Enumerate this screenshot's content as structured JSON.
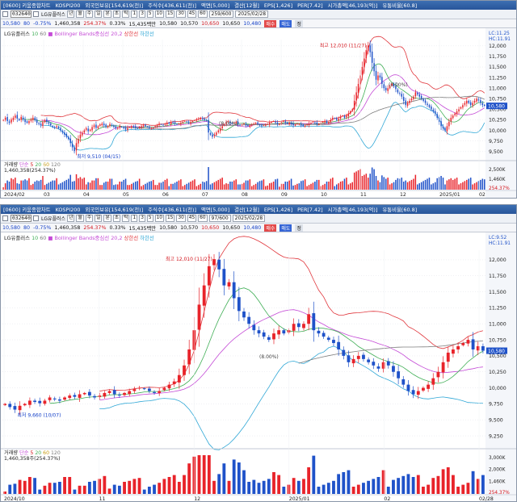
{
  "windows": [
    {
      "id": "top",
      "title_items": [
        "[0600] 키움종합차트",
        "KOSPI200",
        "외국인보유[154,619(천)]",
        "주식수[436,611(천)]",
        "액면[5,000]",
        "결산[12월]",
        "EPS[1,426]",
        "PER[7.42]",
        "시가총액[46,193(억)]",
        "유통비율[60.8]"
      ],
      "code": "032640",
      "period_buttons": [
        "년",
        "월",
        "주",
        "일",
        "분",
        "초",
        "틱",
        "1",
        "3",
        "5",
        "10",
        "15",
        "30",
        "45",
        "60"
      ],
      "counter": "259/600",
      "date": "2025/02/28",
      "stock_name": "LG유플러스",
      "quote": {
        "price": "10,580",
        "change": "80",
        "change_pct": "-0.75%",
        "volume": "1,460,358",
        "vol_ratio": "254.37%",
        "turnover": "0.33%",
        "amount": "15,435백만",
        "open": "10,580",
        "high": "10,570",
        "low": "10,650",
        "close2": "10,650",
        "low2": "10,480"
      },
      "trade_buttons": [
        "매수",
        "매도",
        "정"
      ],
      "legend": {
        "name": "LG유플러스",
        "ma_a": "10",
        "ma_b": "60",
        "bb": "Bollinger Bands중심선 20,2",
        "upper": "상한선",
        "lower": "하한선"
      },
      "hilo": {
        "lc": "LC:11.25",
        "hc": "HC:11.91"
      },
      "vol_legend": {
        "name": "거래량",
        "ma": "단순",
        "p1": "5",
        "p2": "20",
        "p3": "60",
        "p4": "120",
        "value": "1,460,358(254.37%)"
      },
      "annotations": {
        "high": "최고 12,010 (11/27)",
        "low": "최저 9,510 (04/15)",
        "mid": "(8.00%)",
        "mid2": "(0.00%)"
      },
      "last_price_tag": "10,580"
    },
    {
      "id": "bottom",
      "title_items": [
        "[0600] 키움종합차트",
        "KOSPI200",
        "외국인보유[154,619(천)]",
        "주식수[436,611(천)]",
        "액면[5,000]",
        "결산[12월]",
        "EPS[1,426]",
        "PER[7.42]",
        "시가총액[46,193(억)]",
        "유통비율[60.8]"
      ],
      "code": "032640",
      "period_buttons": [
        "년",
        "월",
        "주",
        "일",
        "분",
        "초",
        "틱",
        "1",
        "3",
        "5",
        "10",
        "15",
        "30",
        "45",
        "60"
      ],
      "counter": "97/600",
      "date": "2025/02/28",
      "stock_name": "LG유플러스",
      "quote": {
        "price": "10,580",
        "change": "80",
        "change_pct": "-0.75%",
        "volume": "1,460,358",
        "vol_ratio": "254.37%",
        "turnover": "0.33%",
        "amount": "15,435백만",
        "open": "10,580",
        "high": "10,570",
        "low": "10,650",
        "close2": "10,650",
        "low2": "10,480"
      },
      "trade_buttons": [
        "매수",
        "매도",
        "정"
      ],
      "legend": {
        "name": "LG유플러스",
        "ma_a": "10",
        "ma_b": "60",
        "bb": "Bollinger Bands중심선 20,2",
        "upper": "상한선",
        "lower": "하한선"
      },
      "hilo": {
        "lc": "LC:9.52",
        "hc": "HC:11.91"
      },
      "vol_legend": {
        "name": "거래량",
        "ma": "단순",
        "p1": "5",
        "p2": "20",
        "p3": "60",
        "p4": "120",
        "value": "1,460,358주(254.37%)"
      },
      "annotations": {
        "high": "최고 12,010 (11/27)",
        "low": "최저 9,660 (10/07)",
        "mid": "(8.00%)"
      },
      "last_price_tag": "10,580"
    }
  ],
  "chart_data": [
    {
      "type": "candlestick",
      "window": "top",
      "y_ticks": [
        "12,000",
        "11,750",
        "11,500",
        "11,250",
        "11,000",
        "10,750",
        "10,500",
        "10,250",
        "10,000",
        "9,750",
        "9,500"
      ],
      "ylim": [
        9400,
        12150
      ],
      "x_labels": [
        "2024/02",
        "03",
        "04",
        "05",
        "06",
        "07",
        "08",
        "09",
        "10",
        "11",
        "12",
        "2025/01",
        "02"
      ],
      "vol_ticks": [
        "2,500K",
        "1,460K"
      ],
      "vol_right_label": "254.37%",
      "closes": [
        10250,
        10300,
        10220,
        10180,
        10260,
        10300,
        10350,
        10280,
        10240,
        10320,
        10260,
        10200,
        10180,
        10220,
        10260,
        10300,
        10240,
        10180,
        10150,
        10120,
        10200,
        10240,
        10200,
        10160,
        10120,
        10080,
        10060,
        10100,
        10050,
        10000,
        9950,
        9900,
        9850,
        9800,
        9700,
        9600,
        9510,
        9700,
        9800,
        9900,
        9950,
        10000,
        10050,
        9980,
        10020,
        10080,
        10120,
        10060,
        10100,
        10140,
        10160,
        10120,
        10080,
        10100,
        10150,
        10120,
        10080,
        10050,
        10060,
        10100,
        10080,
        10050,
        10020,
        10060,
        10080,
        10100,
        10080,
        10060,
        10050,
        10080,
        10100,
        10120,
        10100,
        10080,
        10060,
        10050,
        10060,
        10100,
        10120,
        10160,
        10140,
        10120,
        10150,
        10180,
        10160,
        10200,
        10180,
        10160,
        10140,
        10160,
        10180,
        10200,
        10220,
        10200,
        10180,
        10200,
        10220,
        10240,
        10260,
        10280,
        10300,
        10260,
        10250,
        10240,
        9950,
        9900,
        9850,
        9900,
        9950,
        10000,
        10050,
        10100,
        10150,
        10200,
        10220,
        10180,
        10160,
        10180,
        10200,
        10150,
        10120,
        10140,
        10160,
        10120,
        10100,
        10120,
        10140,
        10160,
        10180,
        10150,
        10120,
        10100,
        10120,
        10140,
        10150,
        10180,
        10200,
        10220,
        10180,
        10150,
        10160,
        10200,
        10220,
        10180,
        10160,
        10180,
        10150,
        10120,
        10140,
        10160,
        10150,
        10120,
        10100,
        10120,
        10140,
        10160,
        10180,
        10200,
        10180,
        10150,
        10160,
        10180,
        10200,
        10220,
        10180,
        10200,
        10250,
        10300,
        10280,
        10250,
        10280,
        10320,
        10350,
        10300,
        10350,
        10400,
        10450,
        10500,
        10700,
        10900,
        11100,
        11300,
        11500,
        11700,
        11900,
        12010,
        11850,
        11600,
        11400,
        11200,
        11300,
        11250,
        11100,
        11000,
        10950,
        11000,
        11050,
        11100,
        11050,
        10980,
        10900,
        10850,
        10800,
        10700,
        10600,
        10650,
        10700,
        10750,
        10800,
        10900,
        10850,
        10800,
        10750,
        10700,
        10650,
        10600,
        10550,
        10500,
        10450,
        10400,
        10300,
        10200,
        10100,
        10050,
        10000,
        10100,
        10200,
        10300,
        10350,
        10400,
        10450,
        10500,
        10550,
        10600,
        10650,
        10700,
        10650,
        10600,
        10650,
        10700,
        10750,
        10700,
        10650,
        10600,
        10580
      ]
    },
    {
      "type": "candlestick",
      "window": "bottom",
      "y_ticks": [
        "12,000",
        "11,750",
        "11,500",
        "11,250",
        "11,000",
        "10,750",
        "10,500",
        "10,250",
        "10,000",
        "9,750",
        "9,500",
        "9,250"
      ],
      "ylim": [
        9150,
        12150
      ],
      "x_labels": [
        "2024/10",
        "11",
        "12",
        "2025/01",
        "02",
        "02/28"
      ],
      "vol_ticks": [
        "3,000K",
        "2,000K",
        "1,460K"
      ],
      "vol_right_label": "254.37%",
      "closes": [
        9750,
        9700,
        9660,
        9720,
        9750,
        9800,
        9780,
        9760,
        9800,
        9850,
        9820,
        9800,
        9850,
        9880,
        9860,
        9900,
        9920,
        9880,
        9850,
        9880,
        9920,
        9950,
        9900,
        9880,
        9920,
        9950,
        9980,
        10000,
        9980,
        9950,
        9920,
        9950,
        10000,
        10050,
        10100,
        10200,
        10350,
        10600,
        10900,
        11300,
        11600,
        11900,
        12010,
        11850,
        11600,
        11650,
        11400,
        11200,
        11100,
        11000,
        10900,
        10850,
        10800,
        10750,
        10850,
        10900,
        10850,
        10900,
        11000,
        10950,
        11000,
        11150,
        10900,
        10850,
        10800,
        10750,
        10700,
        10600,
        10500,
        10400,
        10450,
        10500,
        10450,
        10400,
        10350,
        10300,
        10400,
        10350,
        10250,
        10150,
        10050,
        9950,
        9900,
        9950,
        10000,
        10050,
        10150,
        10250,
        10400,
        10550,
        10600,
        10650,
        10700,
        10750,
        10600,
        10650,
        10580
      ]
    }
  ]
}
